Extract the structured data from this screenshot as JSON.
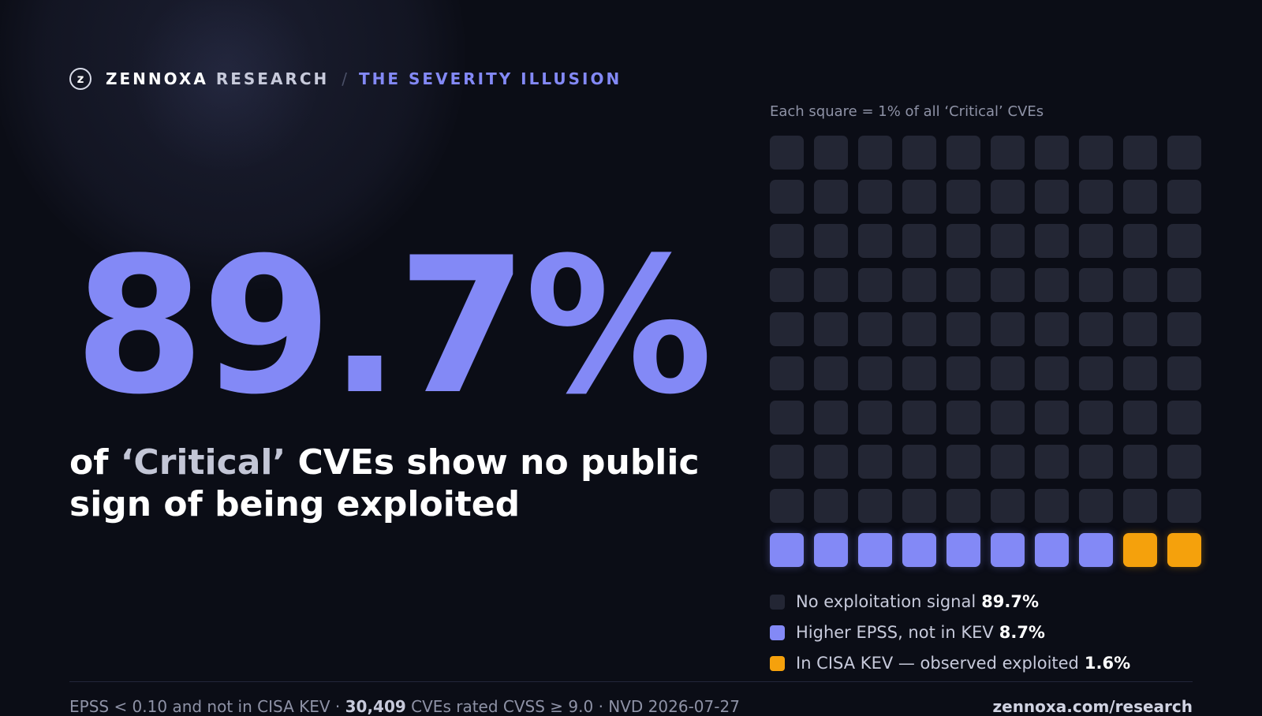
{
  "header": {
    "logo_glyph": "z",
    "brand": "ZENNOXA",
    "brand_sub": "RESEARCH",
    "separator": "/",
    "series_title": "THE SEVERITY ILLUSION"
  },
  "headline": {
    "stat": "89.7%",
    "line_pre": "of ",
    "line_quoted": "‘Critical’",
    "line_post": " CVEs show no public sign of being exploited"
  },
  "chart_data": {
    "type": "waffle",
    "caption": "Each square = 1% of all ‘Critical’ CVEs",
    "rows": 10,
    "cols": 10,
    "cells": {
      "none": 90,
      "epss": 8,
      "kev": 2
    },
    "categories": [
      {
        "key": "none",
        "label": "No exploitation signal",
        "value": "89.7%",
        "percent": 89.7,
        "color": "#232634"
      },
      {
        "key": "epss",
        "label": "Higher EPSS, not in KEV",
        "value": "8.7%",
        "percent": 8.7,
        "color": "#8389f6"
      },
      {
        "key": "kev",
        "label": "In CISA KEV — observed exploited",
        "value": "1.6%",
        "percent": 1.6,
        "color": "#f5a10c"
      }
    ]
  },
  "footer": {
    "method_pre": "EPSS < 0.10 and not in CISA KEV · ",
    "count": "30,409",
    "method_post": " CVEs rated CVSS ≥ 9.0 · NVD 2026-07-27",
    "url": "zennoxa.com/research"
  },
  "colors": {
    "accent": "#8389f6",
    "kev": "#f5a10c",
    "background": "#0b0d16",
    "empty_cell": "#232634"
  }
}
